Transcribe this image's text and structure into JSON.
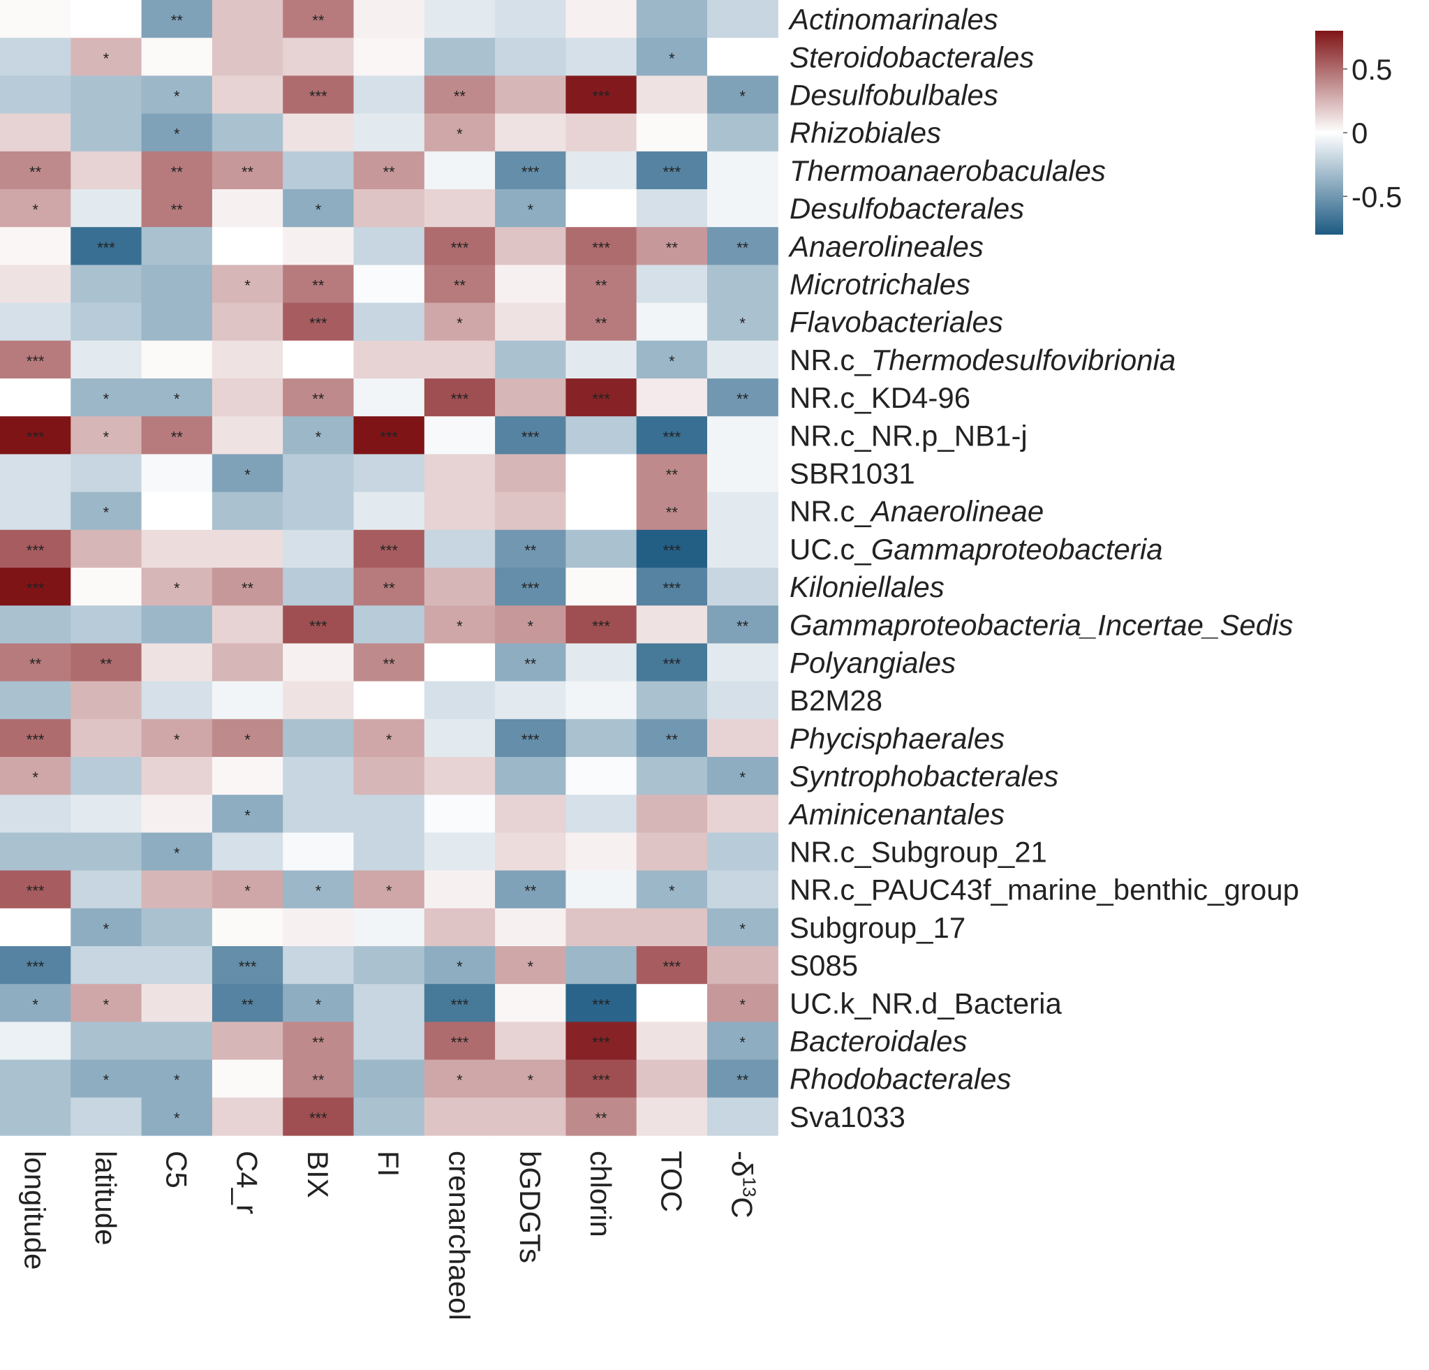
{
  "chart_data": {
    "type": "heatmap",
    "columns": [
      "longitude",
      "latitude",
      "C5",
      "C4_r",
      "BIX",
      "FI",
      "crenarchaeol",
      "bGDGTs",
      "chlorin",
      "TOC",
      "-δ13C"
    ],
    "columns_display": [
      {
        "main": "longitude"
      },
      {
        "main": "latitude"
      },
      {
        "main": "C5"
      },
      {
        "main": "C4_r"
      },
      {
        "main": "BIX"
      },
      {
        "main": "FI"
      },
      {
        "main": "crenarchaeol"
      },
      {
        "main": "bGDGTs"
      },
      {
        "main": "chlorin"
      },
      {
        "main": "TOC"
      },
      {
        "main": "-δ",
        "sup": "13",
        "tail": "C"
      }
    ],
    "rows": [
      {
        "prefix": "",
        "name": "Actinomarinales",
        "italic": true
      },
      {
        "prefix": "",
        "name": "Steroidobacterales",
        "italic": true
      },
      {
        "prefix": "",
        "name": "Desulfobulbales",
        "italic": true
      },
      {
        "prefix": "",
        "name": "Rhizobiales",
        "italic": true
      },
      {
        "prefix": "",
        "name": "Thermoanaerobaculales",
        "italic": true
      },
      {
        "prefix": "",
        "name": "Desulfobacterales",
        "italic": true
      },
      {
        "prefix": "",
        "name": "Anaerolineales",
        "italic": true
      },
      {
        "prefix": "",
        "name": "Microtrichales",
        "italic": true
      },
      {
        "prefix": "",
        "name": "Flavobacteriales",
        "italic": true
      },
      {
        "prefix": "NR.c_",
        "name": "Thermodesulfovibrionia",
        "italic": true
      },
      {
        "prefix": "",
        "name": "NR.c_KD4-96",
        "italic": false
      },
      {
        "prefix": "",
        "name": "NR.c_NR.p_NB1-j",
        "italic": false
      },
      {
        "prefix": "",
        "name": "SBR1031",
        "italic": false
      },
      {
        "prefix": "NR.c_",
        "name": "Anaerolineae",
        "italic": true
      },
      {
        "prefix": "UC.c_",
        "name": "Gammaproteobacteria",
        "italic": true
      },
      {
        "prefix": "",
        "name": "Kiloniellales",
        "italic": true
      },
      {
        "prefix": "",
        "name": "Gammaproteobacteria_Incertae_Sedis",
        "italic": true
      },
      {
        "prefix": "",
        "name": "Polyangiales",
        "italic": true
      },
      {
        "prefix": "",
        "name": "B2M28",
        "italic": false
      },
      {
        "prefix": "",
        "name": "Phycisphaerales",
        "italic": true
      },
      {
        "prefix": "",
        "name": "Syntrophobacterales",
        "italic": true
      },
      {
        "prefix": "",
        "name": "Aminicenantales",
        "italic": true
      },
      {
        "prefix": "",
        "name": "NR.c_Subgroup_21",
        "italic": false
      },
      {
        "prefix": "",
        "name": "NR.c_PAUC43f_marine_benthic_group",
        "italic": false
      },
      {
        "prefix": "",
        "name": "Subgroup_17",
        "italic": false
      },
      {
        "prefix": "",
        "name": "S085",
        "italic": false
      },
      {
        "prefix": "",
        "name": "UC.k_NR.d_Bacteria",
        "italic": false
      },
      {
        "prefix": "",
        "name": "Bacteroidales",
        "italic": true
      },
      {
        "prefix": "",
        "name": "Rhodobacterales",
        "italic": true
      },
      {
        "prefix": "",
        "name": "Sva1033",
        "italic": false
      }
    ],
    "values": [
      [
        0.02,
        0.0,
        -0.45,
        0.2,
        0.45,
        0.05,
        -0.1,
        -0.15,
        0.05,
        -0.35,
        -0.2
      ],
      [
        -0.2,
        0.25,
        0.02,
        0.2,
        0.15,
        0.03,
        -0.3,
        -0.2,
        -0.15,
        -0.4,
        0.0
      ],
      [
        -0.25,
        -0.3,
        -0.35,
        0.15,
        0.5,
        -0.15,
        0.4,
        0.25,
        0.78,
        0.1,
        -0.45
      ],
      [
        0.15,
        -0.3,
        -0.45,
        -0.3,
        0.1,
        -0.1,
        0.3,
        0.1,
        0.15,
        0.02,
        -0.3
      ],
      [
        0.4,
        0.15,
        0.45,
        0.35,
        -0.25,
        0.35,
        -0.05,
        -0.55,
        -0.1,
        -0.6,
        -0.05
      ],
      [
        0.3,
        -0.1,
        0.45,
        0.05,
        -0.4,
        0.2,
        0.15,
        -0.4,
        0.0,
        -0.15,
        -0.05
      ],
      [
        0.03,
        -0.7,
        -0.3,
        0.0,
        0.05,
        -0.2,
        0.5,
        0.2,
        0.5,
        0.35,
        -0.5
      ],
      [
        0.1,
        -0.3,
        -0.35,
        0.25,
        0.45,
        -0.02,
        0.45,
        0.05,
        0.45,
        -0.15,
        -0.3
      ],
      [
        -0.15,
        -0.25,
        -0.35,
        0.2,
        0.55,
        -0.2,
        0.3,
        0.1,
        0.45,
        -0.05,
        -0.3
      ],
      [
        0.45,
        -0.1,
        0.02,
        0.1,
        0.0,
        0.15,
        0.15,
        -0.3,
        -0.1,
        -0.35,
        -0.1
      ],
      [
        0.0,
        -0.35,
        -0.35,
        0.15,
        0.4,
        -0.05,
        0.6,
        0.25,
        0.75,
        0.07,
        -0.5
      ],
      [
        0.8,
        0.25,
        0.45,
        0.1,
        -0.35,
        0.8,
        -0.03,
        -0.6,
        -0.25,
        -0.7,
        -0.05
      ],
      [
        -0.15,
        -0.2,
        -0.03,
        -0.45,
        -0.25,
        -0.2,
        0.15,
        0.25,
        0.0,
        0.4,
        -0.05
      ],
      [
        -0.15,
        -0.35,
        0.0,
        -0.3,
        -0.25,
        -0.1,
        0.15,
        0.2,
        0.0,
        0.4,
        -0.1
      ],
      [
        0.55,
        0.25,
        0.12,
        0.12,
        -0.15,
        0.55,
        -0.2,
        -0.5,
        -0.3,
        -0.78,
        -0.1
      ],
      [
        0.85,
        0.02,
        0.25,
        0.35,
        -0.25,
        0.45,
        0.25,
        -0.55,
        0.02,
        -0.6,
        -0.2
      ],
      [
        -0.3,
        -0.25,
        -0.35,
        0.15,
        0.6,
        -0.25,
        0.3,
        0.35,
        0.6,
        0.1,
        -0.45
      ],
      [
        0.45,
        0.5,
        0.1,
        0.25,
        0.05,
        0.4,
        0.0,
        -0.4,
        -0.1,
        -0.65,
        -0.1
      ],
      [
        -0.3,
        0.25,
        -0.15,
        -0.05,
        0.1,
        0.0,
        -0.15,
        -0.1,
        -0.05,
        -0.3,
        -0.15
      ],
      [
        0.5,
        0.2,
        0.3,
        0.4,
        -0.3,
        0.3,
        -0.1,
        -0.55,
        -0.3,
        -0.5,
        0.15
      ],
      [
        0.3,
        -0.25,
        0.15,
        0.03,
        -0.2,
        0.25,
        0.15,
        -0.35,
        -0.02,
        -0.3,
        -0.4
      ],
      [
        -0.15,
        -0.1,
        0.05,
        -0.4,
        -0.2,
        -0.2,
        -0.02,
        0.15,
        -0.15,
        0.25,
        0.15
      ],
      [
        -0.3,
        -0.3,
        -0.4,
        -0.15,
        -0.03,
        -0.2,
        -0.1,
        0.12,
        0.05,
        0.2,
        -0.25
      ],
      [
        0.55,
        -0.2,
        0.25,
        0.3,
        -0.35,
        0.3,
        0.05,
        -0.45,
        -0.05,
        -0.35,
        -0.2
      ],
      [
        0.0,
        -0.4,
        -0.3,
        0.02,
        0.05,
        -0.05,
        0.2,
        0.05,
        0.2,
        0.2,
        -0.35
      ],
      [
        -0.6,
        -0.2,
        -0.2,
        -0.55,
        -0.2,
        -0.3,
        -0.4,
        0.3,
        -0.35,
        0.55,
        0.25
      ],
      [
        -0.4,
        0.3,
        0.1,
        -0.6,
        -0.4,
        -0.2,
        -0.65,
        0.03,
        -0.75,
        0.0,
        0.35
      ],
      [
        -0.07,
        -0.3,
        -0.3,
        0.25,
        0.4,
        -0.2,
        0.5,
        0.15,
        0.75,
        0.1,
        -0.4
      ],
      [
        -0.3,
        -0.4,
        -0.4,
        0.02,
        0.4,
        -0.35,
        0.3,
        0.3,
        0.6,
        0.2,
        -0.5
      ],
      [
        -0.3,
        -0.2,
        -0.4,
        0.15,
        0.6,
        -0.3,
        0.2,
        0.2,
        0.4,
        0.1,
        -0.2
      ]
    ],
    "significance": [
      [
        "",
        "",
        "**",
        "",
        "**",
        "",
        "",
        "",
        "",
        "",
        ""
      ],
      [
        "",
        "*",
        "",
        "",
        "",
        "",
        "",
        "",
        "",
        "*",
        ""
      ],
      [
        "",
        "",
        "*",
        "",
        "***",
        "",
        "**",
        "",
        "***",
        "",
        "*"
      ],
      [
        "",
        "",
        "*",
        "",
        "",
        "",
        "*",
        "",
        "",
        "",
        ""
      ],
      [
        "**",
        "",
        "**",
        "**",
        "",
        "**",
        "",
        "***",
        "",
        "***",
        ""
      ],
      [
        "*",
        "",
        "**",
        "",
        "*",
        "",
        "",
        "*",
        "",
        "",
        ""
      ],
      [
        "",
        "***",
        "",
        "",
        "",
        "",
        "***",
        "",
        "***",
        "**",
        "**"
      ],
      [
        "",
        "",
        "",
        "*",
        "**",
        "",
        "**",
        "",
        "**",
        "",
        ""
      ],
      [
        "",
        "",
        "",
        "",
        "***",
        "",
        "*",
        "",
        "**",
        "",
        "*"
      ],
      [
        "***",
        "",
        "",
        "",
        "",
        "",
        "",
        "",
        "",
        "*",
        ""
      ],
      [
        "",
        "*",
        "*",
        "",
        "**",
        "",
        "***",
        "",
        "***",
        "",
        "**"
      ],
      [
        "***",
        "*",
        "**",
        "",
        "*",
        "***",
        "",
        "***",
        "",
        "***",
        ""
      ],
      [
        "",
        "",
        "",
        "*",
        "",
        "",
        "",
        "",
        "",
        "**",
        ""
      ],
      [
        "",
        "*",
        "",
        "",
        "",
        "",
        "",
        "",
        "",
        "**",
        ""
      ],
      [
        "***",
        "",
        "",
        "",
        "",
        "***",
        "",
        "**",
        "",
        "***",
        ""
      ],
      [
        "***",
        "",
        "*",
        "**",
        "",
        "**",
        "",
        "***",
        "",
        "***",
        ""
      ],
      [
        "",
        "",
        "",
        "",
        "***",
        "",
        "*",
        "*",
        "***",
        "",
        "**"
      ],
      [
        "**",
        "**",
        "",
        "",
        "",
        "**",
        "",
        "**",
        "",
        "***",
        ""
      ],
      [
        "",
        "",
        "",
        "",
        "",
        "",
        "",
        "",
        "",
        "",
        ""
      ],
      [
        "***",
        "",
        "*",
        "*",
        "",
        "*",
        "",
        "***",
        "",
        "**",
        ""
      ],
      [
        "*",
        "",
        "",
        "",
        "",
        "",
        "",
        "",
        "",
        "",
        "*"
      ],
      [
        "",
        "",
        "",
        "*",
        "",
        "",
        "",
        "",
        "",
        "",
        ""
      ],
      [
        "",
        "",
        "*",
        "",
        "",
        "",
        "",
        "",
        "",
        "",
        ""
      ],
      [
        "***",
        "",
        "",
        "*",
        "*",
        "*",
        "",
        "**",
        "",
        "*",
        ""
      ],
      [
        "",
        "*",
        "",
        "",
        "",
        "",
        "",
        "",
        "",
        "",
        "*"
      ],
      [
        "***",
        "",
        "",
        "***",
        "",
        "",
        "*",
        "*",
        "",
        "***",
        ""
      ],
      [
        "*",
        "*",
        "",
        "**",
        "*",
        "",
        "***",
        "",
        "***",
        "",
        "*"
      ],
      [
        "",
        "",
        "",
        "",
        "**",
        "",
        "***",
        "",
        "***",
        "",
        "*"
      ],
      [
        "",
        "*",
        "*",
        "",
        "**",
        "",
        "*",
        "*",
        "***",
        "",
        "**"
      ],
      [
        "",
        "",
        "*",
        "",
        "***",
        "",
        "",
        "",
        "**",
        "",
        ""
      ]
    ],
    "colorbar": {
      "range": [
        -0.8,
        0.8
      ],
      "ticks": [
        0.5,
        0,
        -0.5
      ],
      "tick_labels": [
        "0.5",
        "0",
        "-0.5"
      ],
      "colors": {
        "low": "#1d5a82",
        "mid": "#ffffff",
        "high": "#7f1417"
      }
    }
  }
}
